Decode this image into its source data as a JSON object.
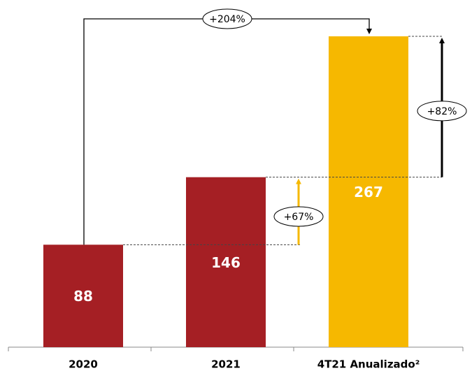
{
  "chart_data": {
    "type": "bar",
    "categories": [
      "2020",
      "2021",
      "4T21 Anualizado²"
    ],
    "values": [
      88,
      146,
      267
    ],
    "colors": [
      "#a51f24",
      "#a51f24",
      "#f6b800"
    ],
    "annotations": [
      "+204%",
      "+67%",
      "+82%"
    ]
  }
}
